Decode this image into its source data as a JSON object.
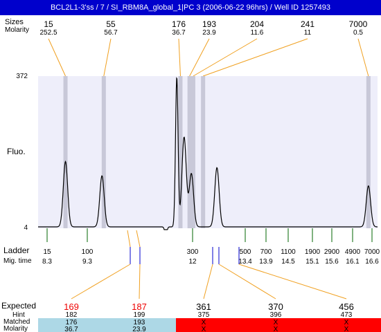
{
  "title": "BCL2L1-3'ss / 7 / SI_RBM8A_global_1|PC 3 (2006-06-22 96hrs) / Well ID 1257493",
  "colors": {
    "title_bg": "#0000cc",
    "plot_bg": "#eeeefa",
    "band": "#c8c8d8",
    "connector": "#f0a020",
    "ladder_tick": "#006600",
    "peak_marker": "#0000cc",
    "expected_red": "#ee0000",
    "matched_bg": "#add8e6",
    "unmatched_bg": "#ff0000"
  },
  "chart_data": {
    "type": "line",
    "y_axis_label": "Fluo.",
    "ylim": [
      4,
      372
    ],
    "y_ticks": [
      "372",
      "4"
    ],
    "top_rows": {
      "size_label": "Sizes",
      "molarity_label": "Molarity",
      "peaks": [
        {
          "size": "15",
          "molarity": "252.5",
          "time": 8.3
        },
        {
          "size": "55",
          "molarity": "56.7",
          "time": 9.35
        },
        {
          "size": "176",
          "molarity": "36.7",
          "time": 11.45
        },
        {
          "size": "193",
          "molarity": "23.9",
          "time": 11.7
        },
        {
          "size": "204",
          "molarity": "11.6",
          "time": 11.8
        },
        {
          "size": "241",
          "molarity": "11",
          "time": 12.07
        },
        {
          "size": "7000",
          "molarity": "0.5",
          "time": 16.6
        }
      ]
    },
    "trace": {
      "baseline": 4,
      "peaks": [
        {
          "time": 8.3,
          "height": 165
        },
        {
          "time": 9.3,
          "height": 130
        },
        {
          "time": 11.35,
          "height": 372
        },
        {
          "time": 11.55,
          "height": 225
        },
        {
          "time": 11.75,
          "height": 135
        },
        {
          "time": 12.45,
          "height": 150
        },
        {
          "time": 16.6,
          "height": 105
        }
      ],
      "dip": {
        "time": 11.05,
        "depth": 22
      }
    },
    "ladder": {
      "label": "Ladder",
      "mig_label": "Mig. time",
      "items": [
        {
          "size": "15",
          "time": "8.3"
        },
        {
          "size": "100",
          "time": "9.3"
        },
        {
          "size": "300",
          "time": "12"
        },
        {
          "size": "500",
          "time": "13.4"
        },
        {
          "size": "700",
          "time": "13.9"
        },
        {
          "size": "1100",
          "time": "14.5"
        },
        {
          "size": "1900",
          "time": "15.1"
        },
        {
          "size": "2900",
          "time": "15.6"
        },
        {
          "size": "4900",
          "time": "16.1"
        },
        {
          "size": "7000",
          "time": "16.6"
        }
      ]
    },
    "expected": {
      "expected_label": "Expected",
      "hint_label": "Hint",
      "matched_label": "Matched",
      "molarity_label": "Molarity",
      "columns": [
        {
          "expected": "169",
          "hint": "182",
          "matched": "176",
          "molarity": "36.7",
          "status": "matched",
          "marker_time": 11.45
        },
        {
          "expected": "187",
          "hint": "199",
          "matched": "193",
          "molarity": "23.9",
          "status": "matched",
          "marker_time": 11.7
        },
        {
          "expected": "361",
          "hint": "375",
          "matched": "X",
          "molarity": "X",
          "status": "unmatched",
          "marker_time": 12.6
        },
        {
          "expected": "370",
          "hint": "396",
          "matched": "X",
          "molarity": "X",
          "status": "unmatched",
          "marker_time": 12.75
        },
        {
          "expected": "456",
          "hint": "473",
          "matched": "X",
          "molarity": "X",
          "status": "unmatched",
          "marker_time": 13.3
        }
      ]
    }
  }
}
